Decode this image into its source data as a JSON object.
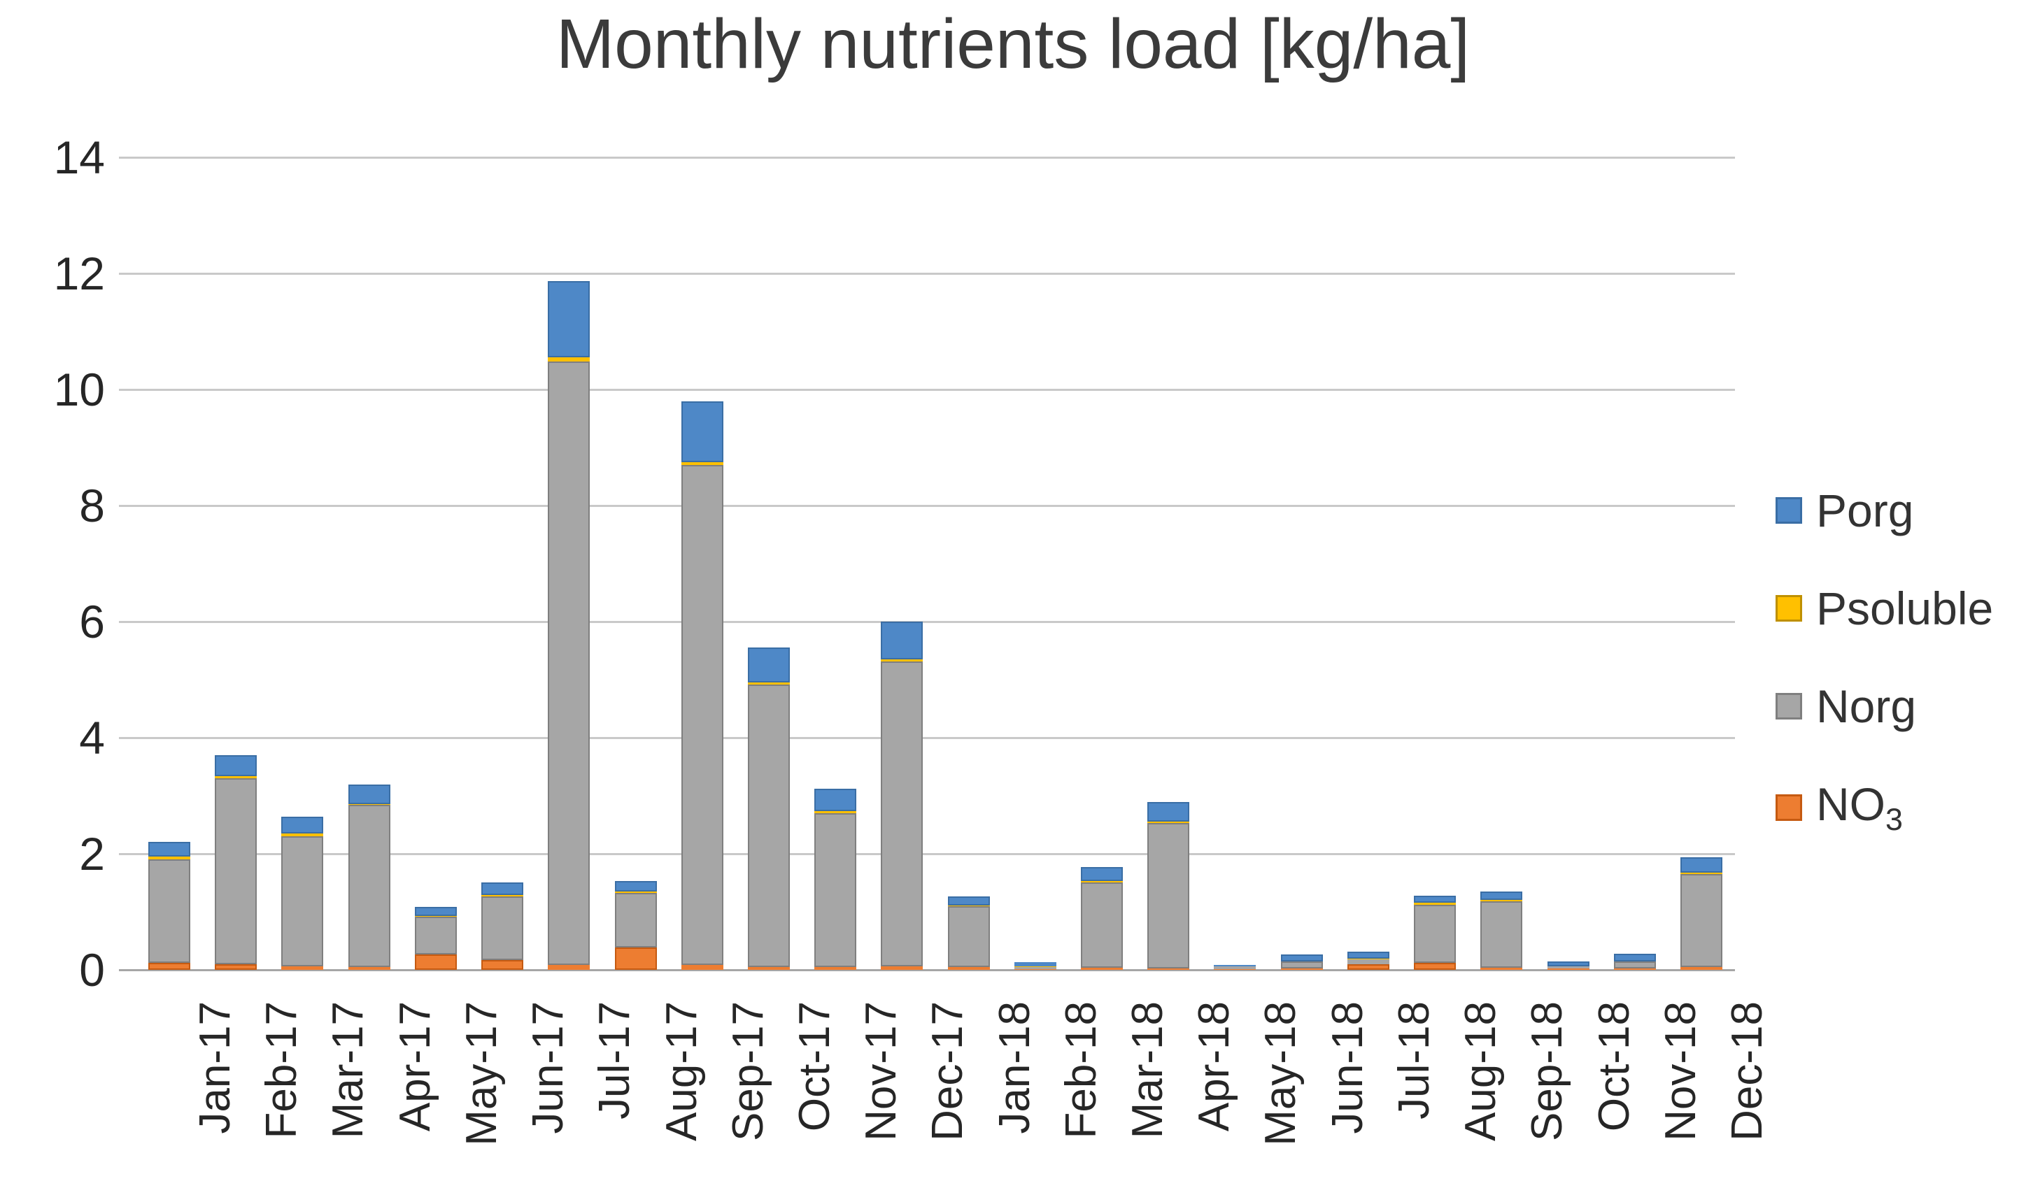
{
  "chart_data": {
    "type": "bar",
    "stacked": true,
    "title": "Monthly nutrients load [kg/ha]",
    "categories": [
      "Jan-17",
      "Feb-17",
      "Mar-17",
      "Apr-17",
      "May-17",
      "Jun-17",
      "Jul-17",
      "Aug-17",
      "Sep-17",
      "Oct-17",
      "Nov-17",
      "Dec-17",
      "Jan-18",
      "Feb-18",
      "Mar-18",
      "Apr-18",
      "May-18",
      "Jun-18",
      "Jul-18",
      "Aug-18",
      "Sep-18",
      "Oct-18",
      "Nov-18",
      "Dec-18"
    ],
    "series": [
      {
        "name": "NO₃",
        "key": "NO3",
        "color": "#ED7D31",
        "border": "#C55A11",
        "values": [
          0.12,
          0.1,
          0.06,
          0.05,
          0.26,
          0.17,
          0.08,
          0.38,
          0.08,
          0.05,
          0.05,
          0.06,
          0.05,
          0.01,
          0.04,
          0.03,
          0.01,
          0.02,
          0.1,
          0.12,
          0.04,
          0.02,
          0.03,
          0.05
        ]
      },
      {
        "name": "Norg",
        "key": "Norg",
        "color": "#A6A6A6",
        "border": "#7F7F7F",
        "values": [
          1.78,
          3.2,
          2.24,
          2.79,
          0.65,
          1.1,
          10.4,
          0.95,
          8.62,
          4.87,
          2.65,
          5.25,
          1.05,
          0.04,
          1.47,
          2.5,
          0.05,
          0.12,
          0.08,
          1.0,
          1.14,
          0.04,
          0.12,
          1.6
        ]
      },
      {
        "name": "Psoluble",
        "key": "Psoluble",
        "color": "#FFC000",
        "border": "#BF9000",
        "values": [
          0.05,
          0.04,
          0.05,
          0.02,
          0.02,
          0.02,
          0.07,
          0.02,
          0.05,
          0.03,
          0.03,
          0.04,
          0.01,
          0.01,
          0.02,
          0.02,
          0.0,
          0.0,
          0.01,
          0.04,
          0.02,
          0.0,
          0.0,
          0.03
        ]
      },
      {
        "name": "Porg",
        "key": "Porg",
        "color": "#4E88C7",
        "border": "#3A6EA5",
        "values": [
          0.25,
          0.36,
          0.29,
          0.33,
          0.15,
          0.22,
          1.32,
          0.18,
          1.05,
          0.6,
          0.39,
          0.65,
          0.16,
          0.07,
          0.24,
          0.34,
          0.02,
          0.12,
          0.12,
          0.12,
          0.15,
          0.09,
          0.13,
          0.26
        ]
      }
    ],
    "totals": [
      2.2,
      3.7,
      2.64,
      3.19,
      1.08,
      1.51,
      11.87,
      1.53,
      9.8,
      5.55,
      3.12,
      6.0,
      1.27,
      0.13,
      1.77,
      2.89,
      0.08,
      0.26,
      0.31,
      1.28,
      1.35,
      0.15,
      0.28,
      1.94
    ],
    "legend_order": [
      "Porg",
      "Psoluble",
      "Norg",
      "NO₃"
    ],
    "legend_position": "right",
    "ylim": [
      0,
      14
    ],
    "yticks": [
      0,
      2,
      4,
      6,
      8,
      10,
      12,
      14
    ],
    "grid": true,
    "gridline_color": "#c9c9c9",
    "axis_text_color": "#262626"
  }
}
